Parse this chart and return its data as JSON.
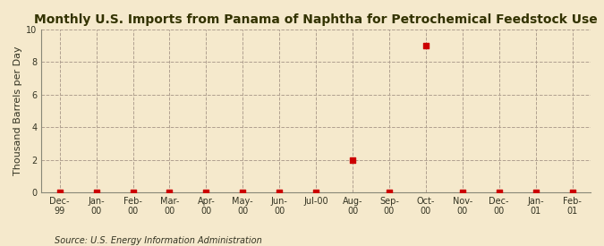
{
  "title": "Monthly U.S. Imports from Panama of Naphtha for Petrochemical Feedstock Use",
  "ylabel": "Thousand Barrels per Day",
  "source": "Source: U.S. Energy Information Administration",
  "x_labels": [
    "Dec-\n99",
    "Jan-\n00",
    "Feb-\n00",
    "Mar-\n00",
    "Apr-\n00",
    "May-\n00",
    "Jun-\n00",
    "Jul-00",
    "Aug-\n00",
    "Sep-\n00",
    "Oct-\n00",
    "Nov-\n00",
    "Dec-\n00",
    "Jan-\n01",
    "Feb-\n01"
  ],
  "x_positions": [
    0,
    1,
    2,
    3,
    4,
    5,
    6,
    7,
    8,
    9,
    10,
    11,
    12,
    13,
    14
  ],
  "y_values": [
    0,
    0,
    0,
    0,
    0,
    0,
    0,
    0,
    2,
    0,
    9,
    0,
    0,
    0,
    0
  ],
  "ylim": [
    0,
    10
  ],
  "yticks": [
    0,
    2,
    4,
    6,
    8,
    10
  ],
  "point_color": "#cc0000",
  "point_size": 18,
  "grid_color": "#b0a090",
  "grid_style": "--",
  "background_color": "#f5e9cc",
  "plot_bg_color": "#f5e9cc",
  "title_fontsize": 10,
  "label_fontsize": 8,
  "tick_fontsize": 7,
  "source_fontsize": 7,
  "title_color": "#333300",
  "axis_color": "#888877",
  "text_color": "#333322"
}
